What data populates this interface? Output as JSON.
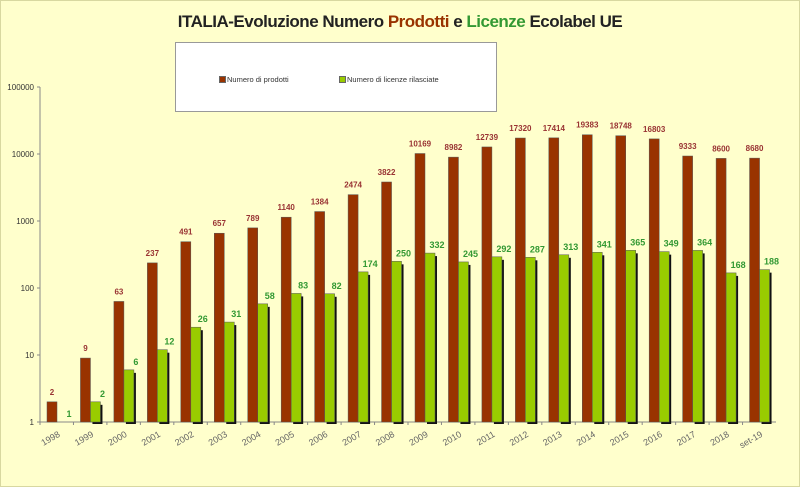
{
  "chart_data": {
    "type": "bar",
    "title": {
      "part1": "ITALIA-Evoluzione Numero ",
      "part2": "Prodotti",
      "part3": " e  ",
      "part4": "Licenze",
      "part5": " Ecolabel UE"
    },
    "yscale": "log",
    "ylim": [
      1,
      100000
    ],
    "yticks": [
      "1",
      "10",
      "100",
      "1000",
      "10000",
      "100000"
    ],
    "categories": [
      "1998",
      "1999",
      "2000",
      "2001",
      "2002",
      "2003",
      "2004",
      "2005",
      "2006",
      "2007",
      "2008",
      "2009",
      "2010",
      "2011",
      "2012",
      "2013",
      "2014",
      "2015",
      "2016",
      "2017",
      "2018",
      "set-19"
    ],
    "series": [
      {
        "name": "Numero di prodotti",
        "color": "#993300",
        "label_color": "#993333",
        "values": [
          2,
          9,
          63,
          237,
          491,
          657,
          789,
          1140,
          1384,
          2474,
          3822,
          10169,
          8982,
          12739,
          17320,
          17414,
          19383,
          18748,
          16803,
          9333,
          8600,
          8680
        ]
      },
      {
        "name": "Numero di licenze rilasciate",
        "color": "#99cc00",
        "label_color": "#339933",
        "values": [
          1,
          2,
          6,
          12,
          26,
          31,
          58,
          83,
          82,
          174,
          250,
          332,
          245,
          292,
          287,
          313,
          341,
          365,
          349,
          364,
          168,
          188
        ]
      }
    ],
    "legend": "top-center",
    "grid": false
  }
}
